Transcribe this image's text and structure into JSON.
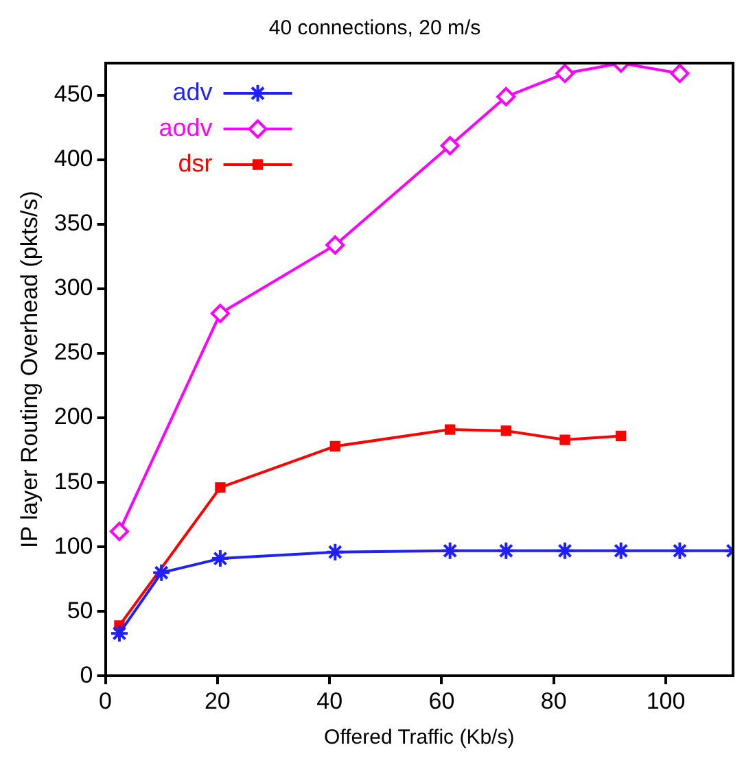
{
  "chart_data": {
    "type": "line",
    "title": "40 connections, 20 m/s",
    "xlabel": "Offered Traffic (Kb/s)",
    "ylabel": "IP layer Routing Overhead (pkts/s)",
    "xlim": [
      0,
      112
    ],
    "xticks": [
      0,
      20,
      40,
      60,
      80,
      100
    ],
    "ylim": [
      0,
      475
    ],
    "yticks": [
      0,
      50,
      100,
      150,
      200,
      250,
      300,
      350,
      400,
      450
    ],
    "grid": false,
    "legend": "top left",
    "line_style": "solid",
    "series": [
      {
        "name": "adv",
        "color": "#1f1fff",
        "marker": "cross",
        "x": [
          2.5,
          10,
          20.5,
          41,
          61.5,
          71.5,
          82,
          92,
          102.5,
          112
        ],
        "values": [
          33,
          80,
          91,
          96,
          97,
          97,
          97,
          97,
          97,
          97
        ]
      },
      {
        "name": "aodv",
        "color": "#ff00ff",
        "marker": "diamond",
        "x": [
          2.5,
          20.5,
          41,
          61.5,
          71.5,
          82,
          92,
          102.5
        ],
        "values": [
          112,
          281,
          334,
          411,
          449,
          467,
          475,
          467
        ]
      },
      {
        "name": "dsr",
        "color": "#ff0000",
        "marker": "square",
        "x": [
          2.5,
          20.5,
          41,
          61.5,
          71.5,
          82,
          92
        ],
        "values": [
          39,
          146,
          178,
          191,
          190,
          183,
          186
        ]
      }
    ]
  }
}
